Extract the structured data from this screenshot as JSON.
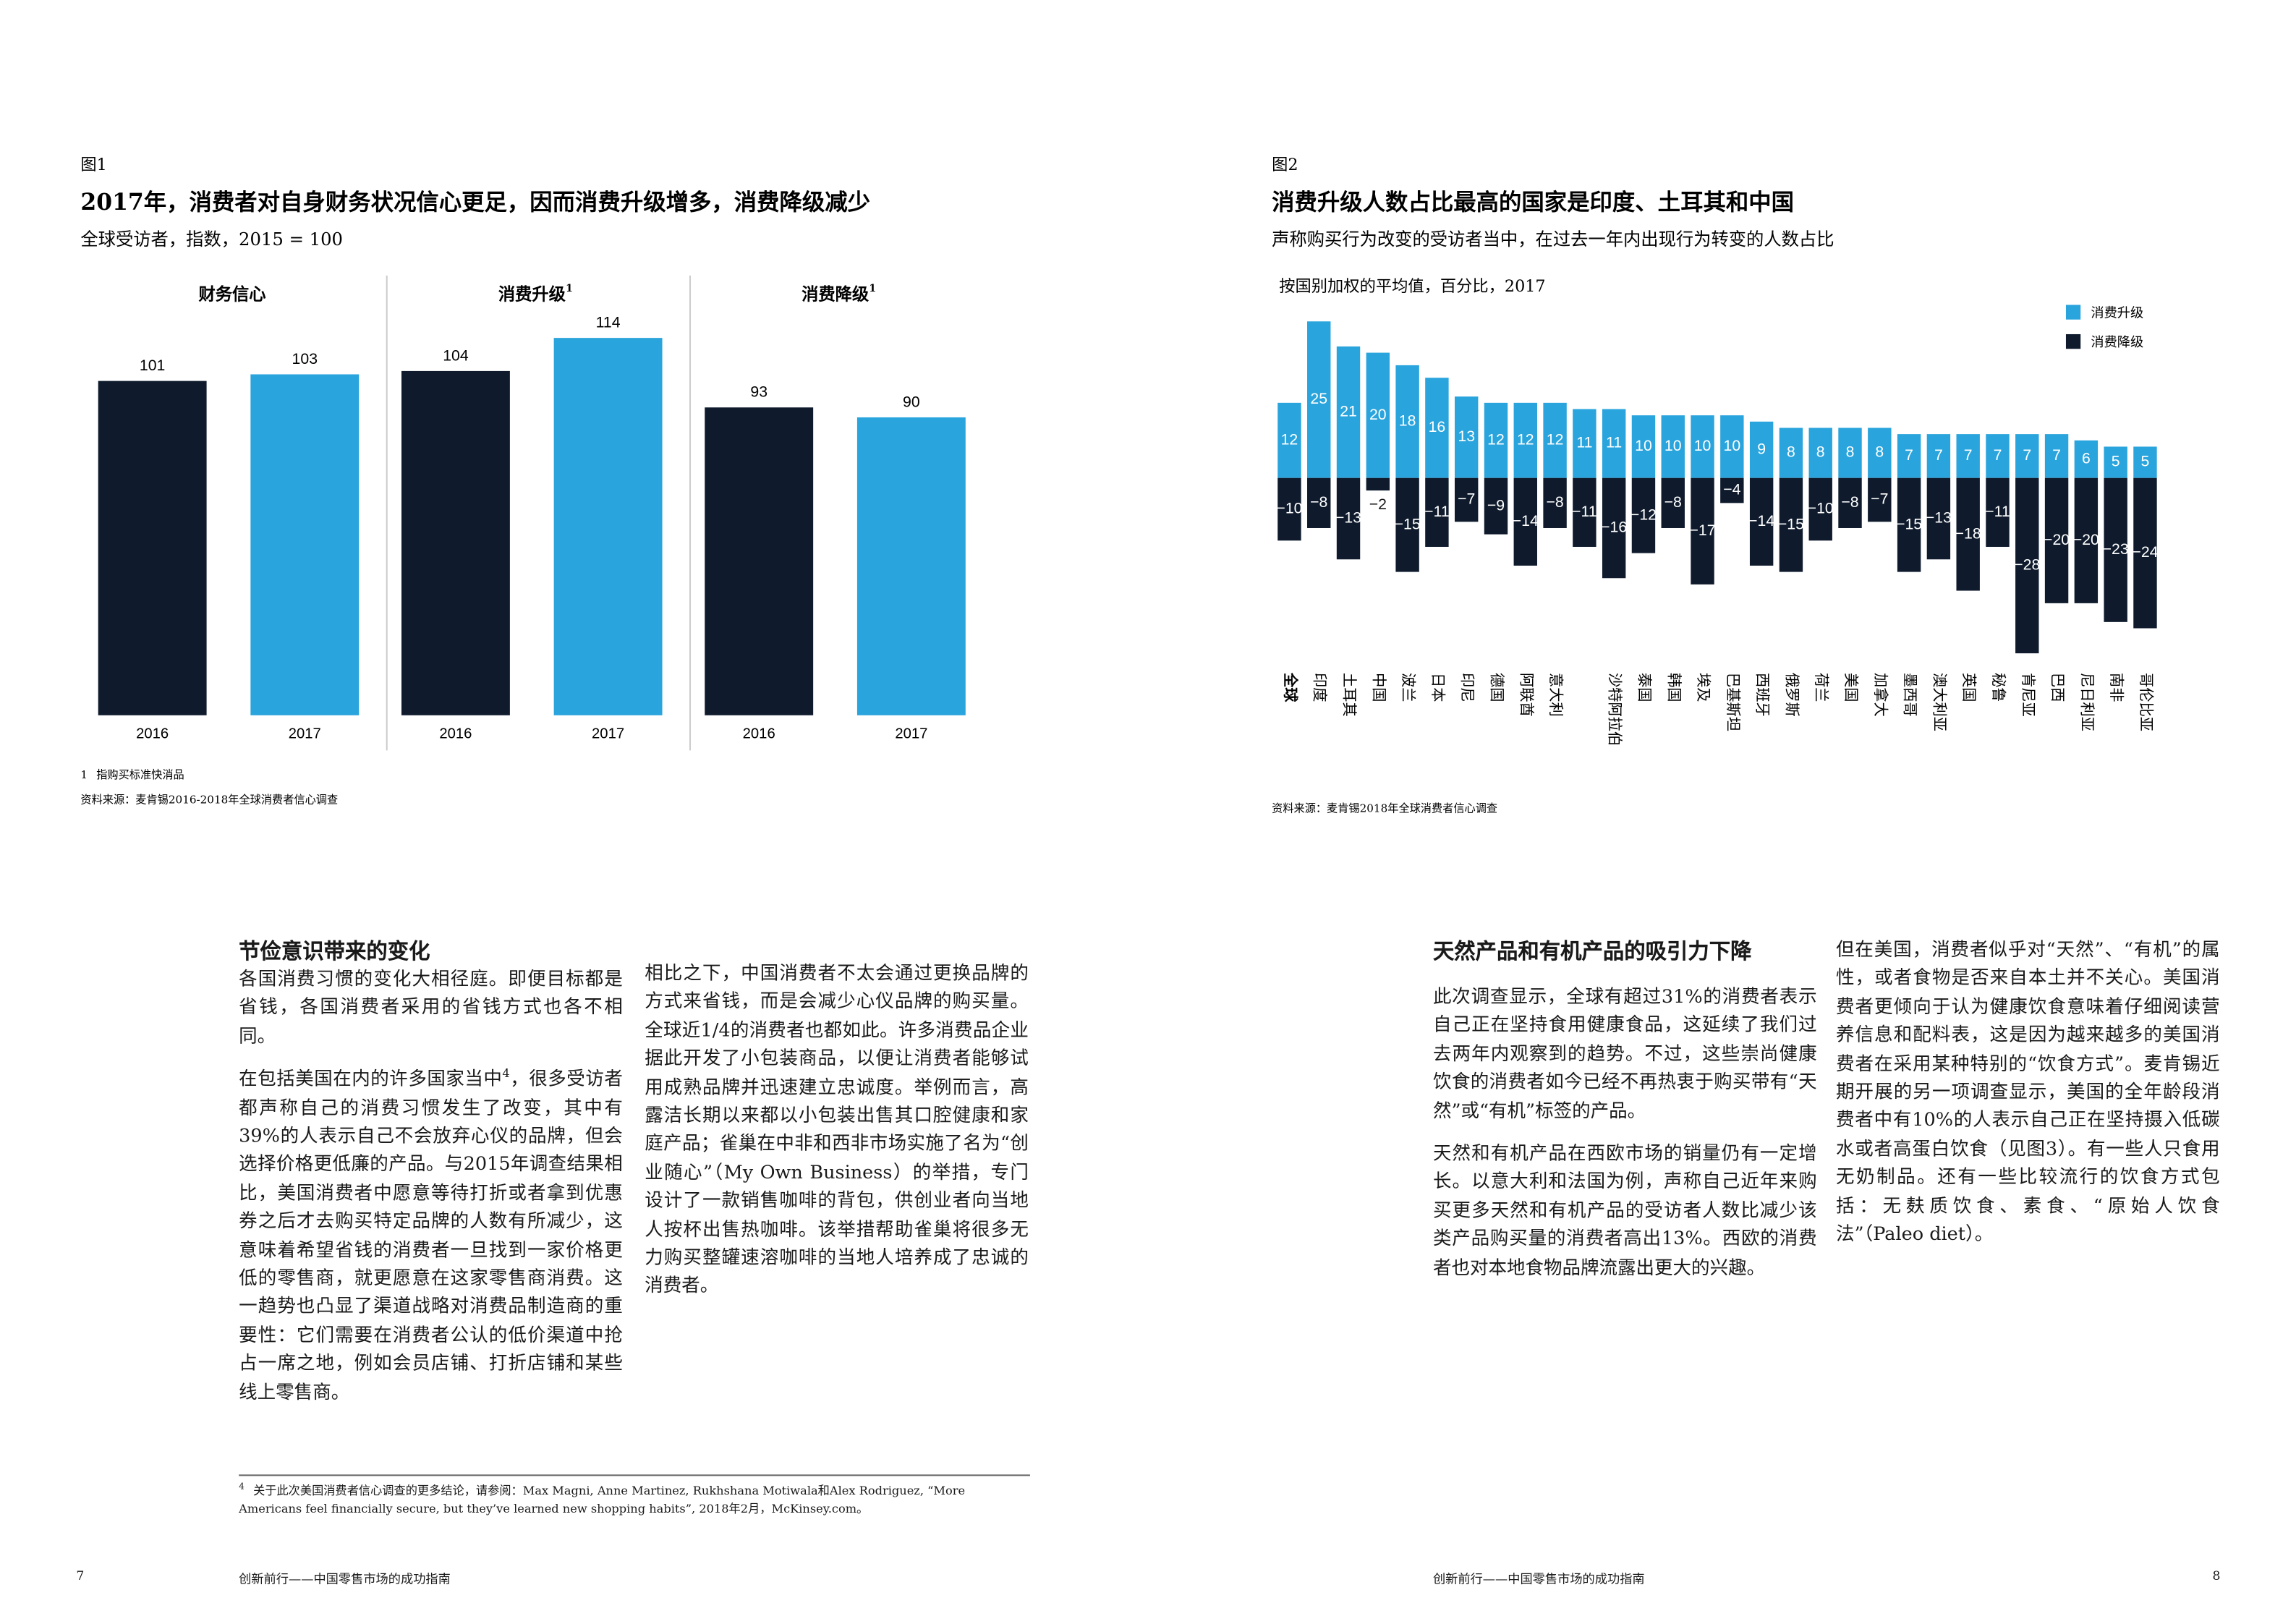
{
  "chart_data": [
    {
      "type": "bar",
      "figure_label": "图1",
      "title": "2017年，消费者对自身财务状况信心更足，因而消费升级增多，消费降级减少",
      "subtitle": "全球受访者，指数，2015 = 100",
      "colors": [
        "#0f1b2d",
        "#2aa4dc"
      ],
      "ylim": [
        0,
        120
      ],
      "panels": [
        {
          "title": "财务信心",
          "categories": [
            "2016",
            "2017"
          ],
          "values": [
            101,
            103
          ]
        },
        {
          "title": "消费升级",
          "title_note": "1",
          "categories": [
            "2016",
            "2017"
          ],
          "values": [
            104,
            114
          ]
        },
        {
          "title": "消费降级",
          "title_note": "1",
          "categories": [
            "2016",
            "2017"
          ],
          "values": [
            93,
            90
          ]
        }
      ],
      "footnote": {
        "marker": "1",
        "text": "指购买标准快消品"
      },
      "source": "资料来源：麦肯锡2016-2018年全球消费者信心调查"
    },
    {
      "type": "bar",
      "figure_label": "图2",
      "title": "消费升级人数占比最高的国家是印度、土耳其和中国",
      "subtitle": "声称购买行为改变的受访者当中，在过去一年内出现行为转变的人数占比",
      "note": "按国别加权的平均值，百分比，2017",
      "categories": [
        "全球",
        "印度",
        "土耳其",
        "中国",
        "波兰",
        "日本",
        "印尼",
        "德国",
        "阿联酋",
        "意大利",
        null,
        "沙特阿拉伯",
        "泰国",
        "韩国",
        "埃及",
        "巴基斯坦",
        "西班牙",
        "俄罗斯",
        "荷兰",
        "美国",
        "加拿大",
        "墨西哥",
        "澳大利亚",
        "英国",
        "秘鲁",
        "肯尼亚",
        "巴西",
        "尼日利亚",
        "南非",
        "哥伦比亚"
      ],
      "series": [
        {
          "name": "消费升级",
          "color": "#2aa4dc",
          "values": [
            12,
            25,
            21,
            20,
            18,
            16,
            13,
            12,
            12,
            12,
            11,
            11,
            10,
            10,
            10,
            10,
            9,
            8,
            8,
            8,
            8,
            7,
            7,
            7,
            7,
            7,
            7,
            6,
            5,
            5
          ]
        },
        {
          "name": "消费降级",
          "color": "#0f1b2d",
          "values": [
            -10,
            -8,
            -13,
            -2,
            -15,
            -11,
            -7,
            -9,
            -14,
            -8,
            -11,
            -16,
            -12,
            -8,
            -17,
            -4,
            -14,
            -15,
            -10,
            -8,
            -7,
            -15,
            -13,
            -18,
            -11,
            -28,
            -20,
            -20,
            -23,
            -24
          ],
          "value_labels": [
            "−10",
            "−8",
            "−13",
            "−2",
            "−15",
            "−11",
            "−7",
            "−9",
            "−14",
            "−8",
            "−11",
            "−16",
            "−12",
            "−8",
            "−17",
            "−4",
            "−14",
            "−15",
            "−10",
            "−8",
            "−7",
            "−15",
            "−13",
            "−18",
            "−11",
            "−28",
            "−20",
            "−20",
            "−23",
            "−24"
          ]
        }
      ],
      "ylim": [
        -29,
        26
      ],
      "legend": "upper right",
      "source": "资料来源：麦肯锡2018年全球消费者信心调查"
    }
  ],
  "document": {
    "pages": [
      {
        "heading": "节俭意识带来的变化",
        "columns": [
          [
            {
              "text": "各国消费习惯的变化大相径庭。即便目标都是省钱，各国消费者采用的省钱方式也各不相同。"
            },
            {
              "text": "在包括美国在内的许多国家当中",
              "note_ref": "4",
              "text_after": "，很多受访者都声称自己的消费习惯发生了改变，其中有39%的人表示自己不会放弃心仪的品牌，但会选择价格更低廉的产品。与2015年调查结果相比，美国消费者中愿意等待打折或者拿到优惠券之后才去购买特定品牌的人数有所减少，这意味着希望省钱的消费者一旦找到一家价格更低的零售商，就更愿意在这家零售商消费。这一趋势也凸显了渠道战略对消费品制造商的重要性：它们需要在消费者公认的低价渠道中抢占一席之地，例如会员店铺、打折店铺和某些线上零售商。"
            }
          ],
          [
            {
              "text": "相比之下，中国消费者不太会通过更换品牌的方式来省钱，而是会减少心仪品牌的购买量。全球近1/4的消费者也都如此。许多消费品企业据此开发了小包装商品，以便让消费者能够试用成熟品牌并迅速建立忠诚度。举例而言，高露洁长期以来都以小包装出售其口腔健康和家庭产品；雀巢在中非和西非市场实施了名为“创业随心”（My Own Business）的举措，专门设计了一款销售咖啡的背包，供创业者向当地人按杯出售热咖啡。该举措帮助雀巢将很多无力购买整罐速溶咖啡的当地人培养成了忠诚的消费者。"
            }
          ]
        ],
        "footnote": {
          "marker": "4",
          "text": "关于此次美国消费者信心调查的更多结论，请参阅：Max Magni, Anne Martinez, Rukhshana Motiwala和Alex Rodriguez, “More Americans feel financially secure, but they’ve learned new shopping habits”, 2018年2月，McKinsey.com。"
        },
        "page_number": 7,
        "running_title": "创新前行——中国零售市场的成功指南"
      },
      {
        "heading": "天然产品和有机产品的吸引力下降",
        "columns": [
          [
            {
              "text": "此次调查显示，全球有超过31%的消费者表示自己正在坚持食用健康食品，这延续了我们过去两年内观察到的趋势。不过，这些崇尚健康饮食的消费者如今已经不再热衷于购买带有“天然”或“有机”标签的产品。"
            },
            {
              "text": "天然和有机产品在西欧市场的销量仍有一定增长。以意大利和法国为例，声称自己近年来购买更多天然和有机产品的受访者人数比减少该类产品购买量的消费者高出13%。西欧的消费者也对本地食物品牌流露出更大的兴趣。"
            }
          ],
          [
            {
              "text": "但在美国，消费者似乎对“天然”、“有机”的属性，或者食物是否来自本土并不关心。美国消费者更倾向于认为健康饮食意味着仔细阅读营养信息和配料表，这是因为越来越多的美国消费者在采用某种特别的“饮食方式”。麦肯锡近期开展的另一项调查显示，美国的全年龄段消费者中有10%的人表示自己正在坚持摄入低碳水或者高蛋白饮食（见图3）。有一些人只食用无奶制品。还有一些比较流行的饮食方式包括：无麸质饮食、素食、“原始人饮食法”（Paleo diet）。"
            }
          ]
        ],
        "page_number": 8,
        "running_title": "创新前行——中国零售市场的成功指南"
      }
    ]
  }
}
